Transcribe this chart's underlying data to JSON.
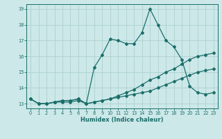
{
  "xlabel": "Humidex (Indice chaleur)",
  "bg_color": "#cce8e8",
  "line_color": "#1a6e6a",
  "grid_color": "#afd0d0",
  "xlim": [
    -0.5,
    23.5
  ],
  "ylim": [
    12.7,
    19.3
  ],
  "xticks": [
    0,
    1,
    2,
    3,
    4,
    5,
    6,
    7,
    8,
    9,
    10,
    11,
    12,
    13,
    14,
    15,
    16,
    17,
    18,
    19,
    20,
    21,
    22,
    23
  ],
  "yticks": [
    13,
    14,
    15,
    16,
    17,
    18,
    19
  ],
  "line1_x": [
    0,
    1,
    2,
    3,
    4,
    5,
    6,
    7,
    8,
    9,
    10,
    11,
    12,
    13,
    14,
    15,
    16,
    17,
    18,
    19,
    20,
    21,
    22,
    23
  ],
  "line1_y": [
    13.3,
    13.0,
    13.0,
    13.1,
    13.1,
    13.1,
    13.2,
    13.0,
    13.1,
    13.2,
    13.3,
    13.4,
    13.5,
    13.6,
    13.7,
    13.8,
    14.0,
    14.2,
    14.4,
    14.6,
    14.8,
    15.0,
    15.1,
    15.2
  ],
  "line2_x": [
    0,
    1,
    2,
    3,
    4,
    5,
    6,
    7,
    8,
    9,
    10,
    11,
    12,
    13,
    14,
    15,
    16,
    17,
    18,
    19,
    20,
    21,
    22,
    23
  ],
  "line2_y": [
    13.3,
    13.0,
    13.0,
    13.1,
    13.2,
    13.2,
    13.3,
    13.0,
    15.3,
    16.1,
    17.1,
    17.0,
    16.8,
    16.8,
    17.5,
    19.0,
    18.0,
    17.0,
    16.6,
    15.8,
    14.1,
    13.7,
    13.6,
    13.7
  ],
  "line3_x": [
    0,
    1,
    2,
    3,
    4,
    5,
    6,
    7,
    8,
    9,
    10,
    11,
    12,
    13,
    14,
    15,
    16,
    17,
    18,
    19,
    20,
    21,
    22,
    23
  ],
  "line3_y": [
    13.3,
    13.0,
    13.0,
    13.1,
    13.2,
    13.2,
    13.3,
    13.0,
    13.1,
    13.2,
    13.3,
    13.5,
    13.7,
    13.9,
    14.2,
    14.5,
    14.7,
    15.0,
    15.2,
    15.5,
    15.8,
    16.0,
    16.1,
    16.2
  ]
}
